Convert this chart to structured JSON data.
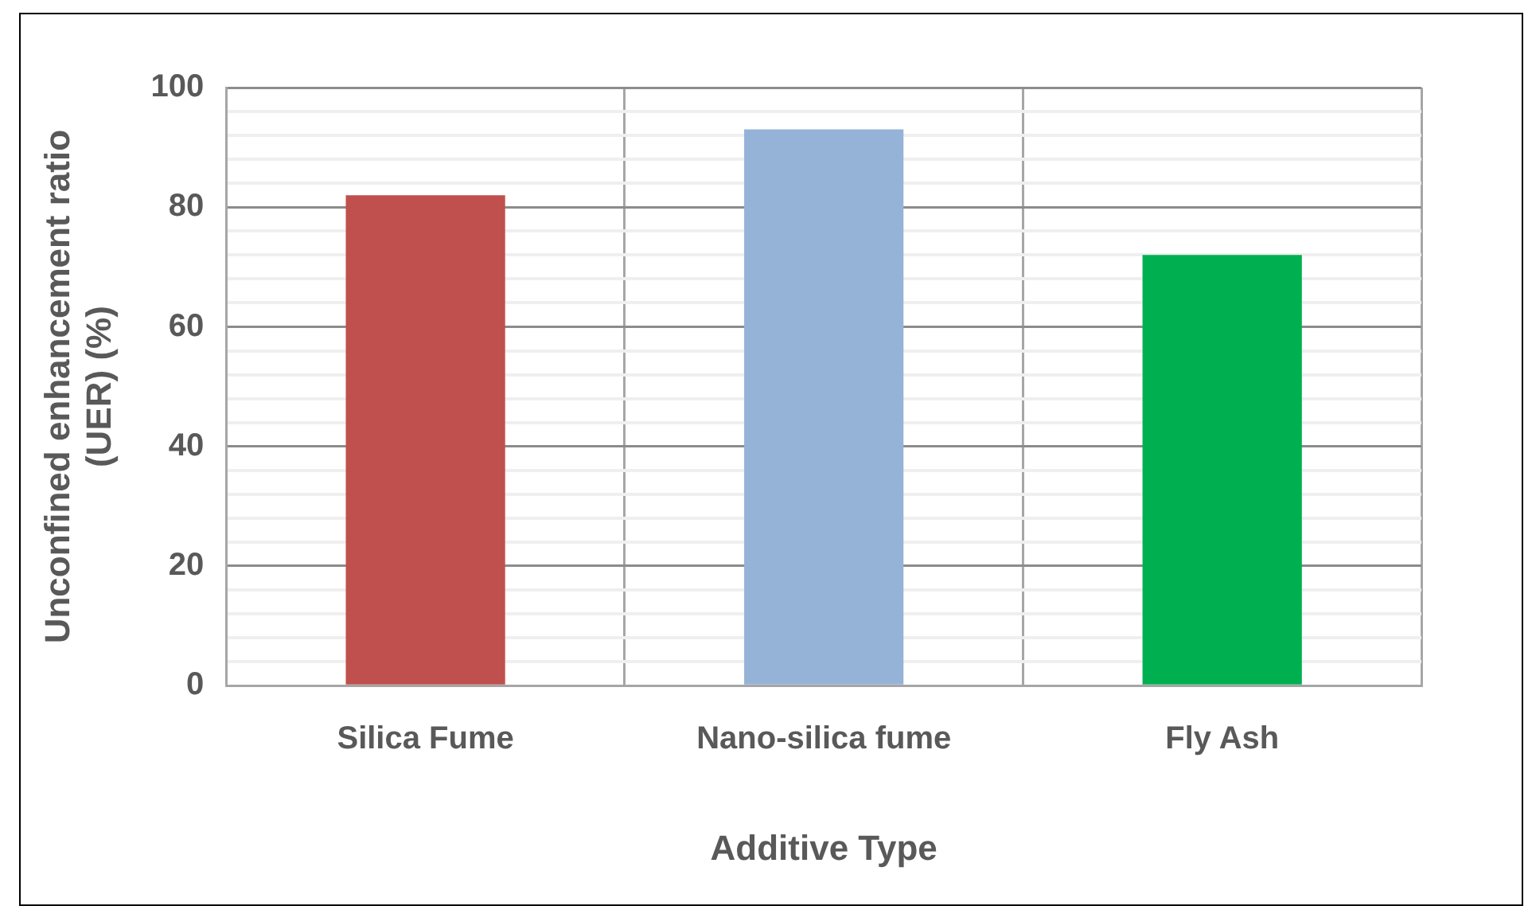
{
  "chart_data": {
    "type": "bar",
    "xlabel": "Additive Type",
    "ylabel": "Unconfined enhancement ratio (UER) (%)",
    "categories": [
      "Silica Fume",
      "Nano-silica fume",
      "Fly Ash"
    ],
    "values": [
      82,
      93,
      72
    ],
    "colors": [
      "#c0504d",
      "#95b3d7",
      "#00b050"
    ],
    "ylim": [
      0,
      100
    ],
    "yticks": [
      0,
      {
        "value": 4,
        "label": null
      },
      {
        "value": 8,
        "label": null
      },
      {
        "value": 12,
        "label": null
      },
      {
        "value": 16,
        "label": null
      },
      20,
      {
        "value": 24,
        "label": null
      },
      {
        "value": 28,
        "label": null
      },
      {
        "value": 32,
        "label": null
      },
      {
        "value": 36,
        "label": null
      },
      40,
      {
        "value": 44,
        "label": null
      },
      {
        "value": 48,
        "label": null
      },
      {
        "value": 52,
        "label": null
      },
      {
        "value": 56,
        "label": null
      },
      60,
      {
        "value": 64,
        "label": null
      },
      {
        "value": 68,
        "label": null
      },
      {
        "value": 72,
        "label": null
      },
      {
        "value": 76,
        "label": null
      },
      80,
      {
        "value": 84,
        "label": null
      },
      {
        "value": 88,
        "label": null
      },
      {
        "value": 92,
        "label": null
      },
      {
        "value": 96,
        "label": null
      },
      100
    ],
    "grid": true
  }
}
